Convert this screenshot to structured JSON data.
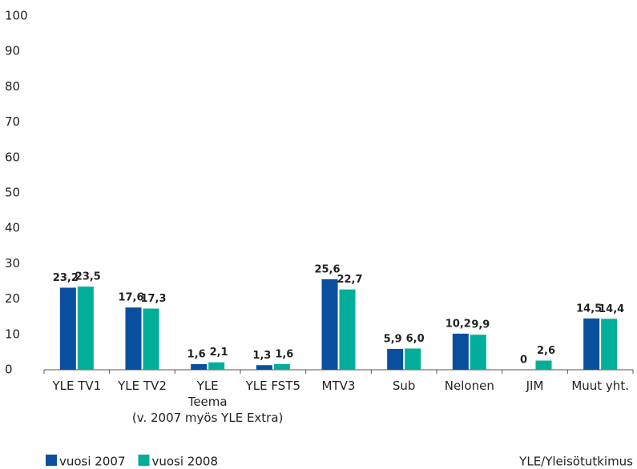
{
  "chart_data": {
    "type": "bar",
    "categories": [
      "YLE TV1",
      "YLE TV2",
      "YLE\nTeema",
      "YLE FST5",
      "MTV3",
      "Sub",
      "Nelonen",
      "JIM",
      "Muut yht."
    ],
    "category_note": "(v. 2007 myös YLE Extra)",
    "series": [
      {
        "name": "vuosi 2007",
        "color": "#0a4f9e",
        "values": [
          23.2,
          17.6,
          1.6,
          1.3,
          25.6,
          5.9,
          10.2,
          0,
          14.5
        ],
        "value_labels": [
          "23,2",
          "17,6",
          "1,6",
          "1,3",
          "25,6",
          "5,9",
          "10,2",
          "0",
          "14,5"
        ]
      },
      {
        "name": "vuosi 2008",
        "color": "#00ae9a",
        "values": [
          23.5,
          17.3,
          2.1,
          1.6,
          22.7,
          6.0,
          9.9,
          2.6,
          14.4
        ],
        "value_labels": [
          "23,5",
          "17,3",
          "2,1",
          "1,6",
          "22,7",
          "6,0",
          "9,9",
          "2,6",
          "14,4"
        ]
      }
    ],
    "ylim": [
      0,
      100
    ],
    "yticks": [
      0,
      10,
      20,
      30,
      40,
      50,
      60,
      70,
      80,
      90,
      100
    ],
    "grid": false,
    "legend": "bottom-left",
    "source": "YLE/Yleisötutkimus"
  }
}
